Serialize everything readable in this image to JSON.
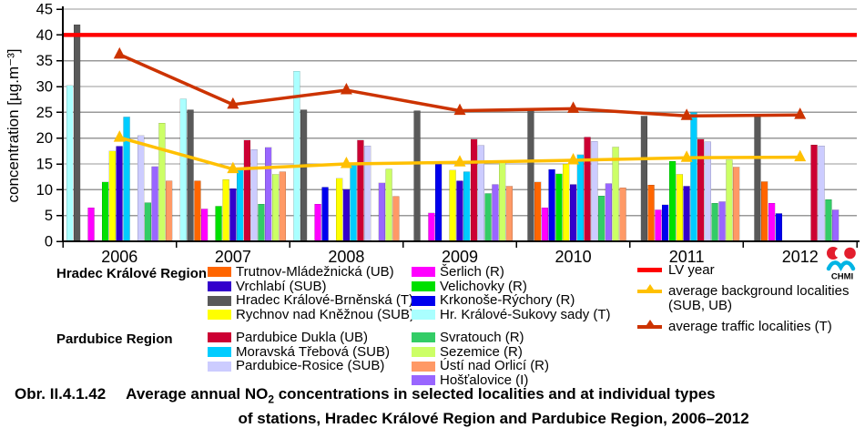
{
  "chart_data": {
    "type": "bar",
    "title": "",
    "xlabel": "",
    "ylabel": "concentration [µg.m⁻³]",
    "ylim": [
      0,
      45
    ],
    "ytick_step": 5,
    "grid": true,
    "legend_position": "bottom",
    "categories": [
      "2006",
      "2007",
      "2008",
      "2009",
      "2010",
      "2011",
      "2012"
    ],
    "series": [
      {
        "name": "Hr. Králové-Sukovy sady (T)",
        "color": "#AAFFFF",
        "values": [
          30.2,
          27.6,
          33.0,
          null,
          null,
          null,
          null
        ]
      },
      {
        "name": "Hradec Králové-Brněnská (T)",
        "color": "#595959",
        "values": [
          42.0,
          25.5,
          25.5,
          25.3,
          25.3,
          24.3,
          24.5
        ]
      },
      {
        "name": "Trutnov-Mládežnická (UB)",
        "color": "#FF6600",
        "values": [
          null,
          11.7,
          null,
          null,
          11.5,
          10.9,
          11.6
        ]
      },
      {
        "name": "Šerlich (R)",
        "color": "#FF00FF",
        "values": [
          6.5,
          6.3,
          7.2,
          5.5,
          6.5,
          6.1,
          7.4
        ]
      },
      {
        "name": "Krkonoše-Rýchory (R)",
        "color": "#0000EE",
        "values": [
          null,
          null,
          10.5,
          15.2,
          13.9,
          7.1,
          5.4
        ]
      },
      {
        "name": "Velichovky (R)",
        "color": "#00E000",
        "values": [
          11.5,
          6.8,
          null,
          null,
          13.1,
          15.5,
          null
        ]
      },
      {
        "name": "Rychnov nad Kněžnou (SUB)",
        "color": "#FFFF00",
        "values": [
          17.5,
          12.0,
          12.2,
          13.8,
          15.0,
          13.0,
          null
        ]
      },
      {
        "name": "Vrchlabí (SUB)",
        "color": "#3300CC",
        "values": [
          18.4,
          10.2,
          10.1,
          11.7,
          11.0,
          10.7,
          null
        ]
      },
      {
        "name": "Moravská Třebová (SUB)",
        "color": "#00CCFF",
        "values": [
          24.1,
          14.0,
          15.2,
          13.5,
          16.8,
          25.0,
          null
        ]
      },
      {
        "name": "Pardubice Dukla (UB)",
        "color": "#CC0033",
        "values": [
          null,
          19.6,
          19.6,
          19.8,
          20.2,
          19.8,
          18.7
        ]
      },
      {
        "name": "Pardubice-Rosice (SUB)",
        "color": "#CCCCFF",
        "values": [
          20.5,
          17.8,
          18.5,
          18.6,
          19.4,
          19.3,
          18.5
        ]
      },
      {
        "name": "Svratouch (R)",
        "color": "#33CC66",
        "values": [
          7.5,
          7.2,
          null,
          9.3,
          8.8,
          7.4,
          8.1
        ]
      },
      {
        "name": "Hošťalovice (I)",
        "color": "#9966FF",
        "values": [
          14.5,
          18.2,
          11.3,
          11.0,
          11.2,
          7.7,
          6.1
        ]
      },
      {
        "name": "Sezemice (R)",
        "color": "#CCFF66",
        "values": [
          22.9,
          13.0,
          14.0,
          15.5,
          18.3,
          15.8,
          null
        ]
      },
      {
        "name": "Ústí nad Orlicí (R)",
        "color": "#FF9966",
        "values": [
          11.7,
          13.5,
          8.7,
          10.7,
          10.4,
          14.4,
          null
        ]
      }
    ],
    "ref_line": {
      "label": "LV year",
      "value": 40,
      "color": "#FF0000"
    },
    "line_series": [
      {
        "name": "average background localities (SUB, UB)",
        "color": "#FFC000",
        "marker": "triangle",
        "values": [
          20.1,
          14.0,
          15.0,
          15.3,
          15.7,
          16.2,
          16.3
        ]
      },
      {
        "name": "average traffic localities (T)",
        "color": "#CC3300",
        "marker": "triangle",
        "values": [
          36.2,
          26.5,
          29.3,
          25.3,
          25.7,
          24.3,
          24.5
        ]
      }
    ]
  },
  "legend": {
    "region1": {
      "label": "Hradec Králové Region",
      "col1": [
        2,
        7,
        1,
        6
      ],
      "col2": [
        3,
        5,
        4,
        0
      ]
    },
    "region2": {
      "label": "Pardubice Region",
      "col1": [
        9,
        8,
        10
      ],
      "col2": [
        11,
        13,
        14,
        12
      ]
    },
    "lines": [
      {
        "label": "LV year",
        "color": "#FF0000",
        "marker": false
      },
      {
        "label": "average background localities",
        "label2": "(SUB, UB)",
        "color": "#FFC000",
        "marker": true
      },
      {
        "label": "average traffic localities  (T)",
        "color": "#CC3300",
        "marker": true
      }
    ]
  },
  "logo": {
    "text": "CHMI",
    "red": "#E31E2D",
    "cyan": "#00B4E4"
  },
  "caption": {
    "label": "Obr. II.4.1.42",
    "line1_pre": "Average annual NO",
    "line1_sub": "2",
    "line1_post": " concentrations in selected localities and at individual types",
    "line2": "of stations, Hradec Králové Region and Pardubice Region, 2006–2012"
  }
}
